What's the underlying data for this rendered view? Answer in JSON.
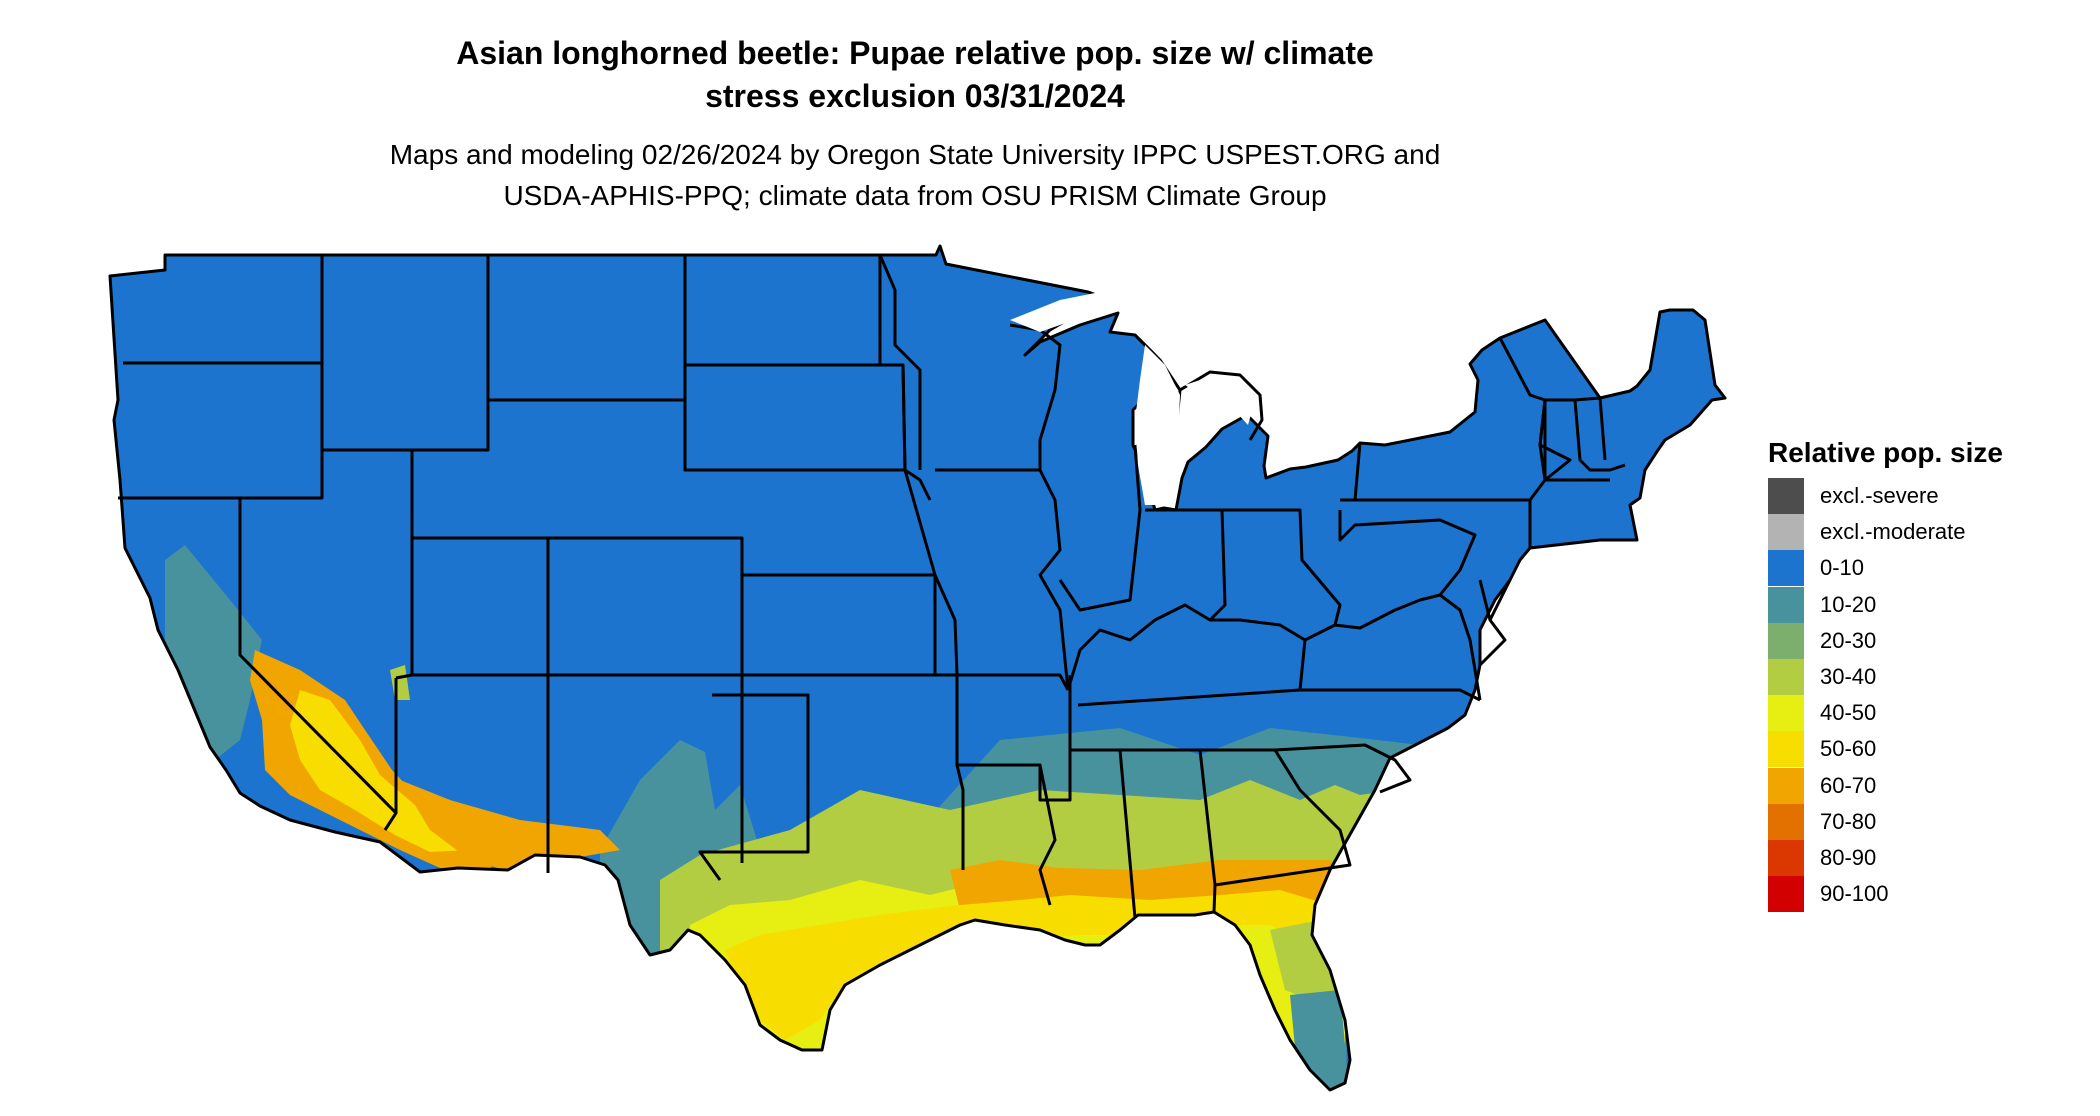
{
  "title": {
    "line1": "Asian longhorned beetle: Pupae relative pop. size w/ climate",
    "line2": "stress exclusion 03/31/2024"
  },
  "subtitle": {
    "line1": "Maps and modeling 02/26/2024 by Oregon State University IPPC USPEST.ORG and",
    "line2": "USDA-APHIS-PPQ; climate data from OSU PRISM Climate Group"
  },
  "map": {
    "region": "contiguous United States",
    "dominant_class": "0-10",
    "southern_bands": [
      {
        "class": "10-20",
        "area": "southern plains, Southeast coastal plain, southern Florida, interior California"
      },
      {
        "class": "30-40",
        "area": "central Texas to Georgia/South Carolina"
      },
      {
        "class": "40-50",
        "area": "southeast Texas and Gulf coast inland"
      },
      {
        "class": "50-60",
        "area": "Gulf coast, south Texas, northern Florida, desert Southwest"
      },
      {
        "class": "60-70",
        "area": "Gulf coast fringe, southern Arizona, southern California deserts"
      }
    ]
  },
  "legend": {
    "title": "Relative pop. size",
    "items": [
      {
        "label": "excl.-severe",
        "color": "#4d4d4d"
      },
      {
        "label": "excl.-moderate",
        "color": "#b3b3b3"
      },
      {
        "label": "0-10",
        "color": "#1c74ce"
      },
      {
        "label": "10-20",
        "color": "#47929d"
      },
      {
        "label": "20-30",
        "color": "#7cae6e"
      },
      {
        "label": "30-40",
        "color": "#b3cd42"
      },
      {
        "label": "40-50",
        "color": "#e7ee12"
      },
      {
        "label": "50-60",
        "color": "#f8dd00"
      },
      {
        "label": "60-70",
        "color": "#f0a500"
      },
      {
        "label": "70-80",
        "color": "#e27100"
      },
      {
        "label": "80-90",
        "color": "#da3800"
      },
      {
        "label": "90-100",
        "color": "#d20000"
      }
    ]
  }
}
